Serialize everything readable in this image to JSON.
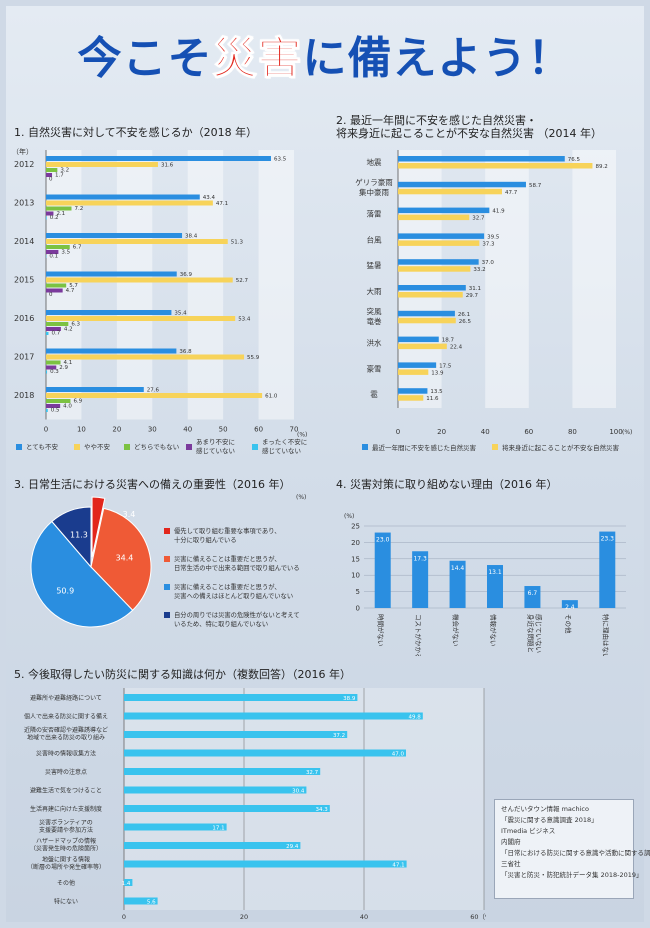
{
  "header": {
    "title_part1": "今こそ",
    "title_part2": "災害",
    "title_part3": "に備えよう！"
  },
  "colors": {
    "blue": "#2a8ee0",
    "yellow": "#f7d35a",
    "green": "#7cc242",
    "purple": "#7b3a9c",
    "cyan": "#39c3ee",
    "red": "#e2261c",
    "orange_red": "#ef5a36",
    "navy": "#1a3c8e"
  },
  "chart_data": [
    {
      "type": "bar",
      "orientation": "horizontal",
      "title": "1.   自然災害に対して不安を感じるか（2018 年）",
      "ylabel": "（年）",
      "unit": "(%)",
      "categories": [
        "2012",
        "2013",
        "2014",
        "2015",
        "2016",
        "2017",
        "2018"
      ],
      "xlim": [
        0,
        70
      ],
      "xticks": [
        "0",
        "10",
        "20",
        "30",
        "40",
        "50",
        "60",
        "70"
      ],
      "series": [
        {
          "name": "とても不安",
          "values": [
            63.5,
            43.4,
            38.4,
            36.9,
            35.4,
            36.8,
            27.6
          ]
        },
        {
          "name": "やや不安",
          "values": [
            31.6,
            47.1,
            51.3,
            52.7,
            53.4,
            55.9,
            61.0
          ]
        },
        {
          "name": "どちらでもない",
          "values": [
            3.2,
            7.2,
            6.7,
            5.7,
            6.3,
            4.1,
            6.9
          ]
        },
        {
          "name": "あまり不安に感じていない",
          "values": [
            1.7,
            2.1,
            3.5,
            4.7,
            4.2,
            2.9,
            4.0
          ]
        },
        {
          "name": "まったく不安に感じていない",
          "values": [
            0,
            0.2,
            0.1,
            0,
            0.7,
            0.3,
            0.5
          ]
        }
      ],
      "labels": [
        [
          "63.5",
          "31.6",
          "3.2",
          "1.7",
          "0"
        ],
        [
          "43.4",
          "47.1",
          "7.2",
          "2.1",
          "0.2"
        ],
        [
          "38.4",
          "51.3",
          "6.7",
          "3.5",
          "0.1"
        ],
        [
          "36.9",
          "52.7",
          "5.7",
          "4.7",
          "0"
        ],
        [
          "35.4",
          "53.4",
          "6.3",
          "4.2",
          "0.7"
        ],
        [
          "36.8",
          "55.9",
          "4.1",
          "2.9",
          "0.3"
        ],
        [
          "27.6",
          "61.0",
          "6.9",
          "4.0",
          "0.5"
        ]
      ],
      "legend": [
        {
          "label": "とても不安",
          "color": "#2a8ee0"
        },
        {
          "label": "やや不安",
          "color": "#f7d35a"
        },
        {
          "label": "どちらでもない",
          "color": "#7cc242"
        },
        {
          "label": "あまり不安に|感じていない",
          "color": "#7b3a9c"
        },
        {
          "label": "まったく不安に|感じていない",
          "color": "#39c3ee"
        }
      ]
    },
    {
      "type": "bar",
      "orientation": "horizontal",
      "title": "2.   最近一年間に不安を感じた自然災害・|将来身近に起こることが不安な自然災害  （2014 年）",
      "unit": "(%)",
      "categories": [
        "地震",
        "ゲリラ豪雨|集中豪雨",
        "落雷",
        "台風",
        "猛暑",
        "大雨",
        "突風|竜巻",
        "洪水",
        "豪雪",
        "雹"
      ],
      "xlim": [
        0,
        100
      ],
      "xticks": [
        "0",
        "20",
        "40",
        "60",
        "80",
        "100"
      ],
      "series": [
        {
          "name": "最近一年間に不安を感じた自然災害",
          "values": [
            76.5,
            58.7,
            41.9,
            39.5,
            37.0,
            31.1,
            26.1,
            18.7,
            17.5,
            13.5
          ]
        },
        {
          "name": "将来身近に起こることが不安な自然災害",
          "values": [
            89.2,
            47.7,
            32.7,
            37.3,
            33.2,
            29.7,
            26.5,
            22.4,
            13.9,
            11.6
          ]
        }
      ],
      "labels": [
        [
          "76.5",
          "89.2"
        ],
        [
          "58.7",
          "47.7"
        ],
        [
          "41.9",
          "32.7"
        ],
        [
          "39.5",
          "37.3"
        ],
        [
          "37.0",
          "33.2"
        ],
        [
          "31.1",
          "29.7"
        ],
        [
          "26.1",
          "26.5"
        ],
        [
          "18.7",
          "22.4"
        ],
        [
          "17.5",
          "13.9"
        ],
        [
          "13.5",
          "11.6"
        ]
      ],
      "legend": [
        {
          "label": "最近一年間に不安を感じた自然災害",
          "color": "#2a8ee0"
        },
        {
          "label": "将来身近に起こることが不安な自然災害",
          "color": "#f7d35a"
        }
      ]
    },
    {
      "type": "pie",
      "title": "3.   日常生活における災害への備えの重要性（2016 年）",
      "unit": "(%)",
      "values": [
        3.4,
        34.4,
        50.9,
        11.3
      ],
      "labels": [
        "3.4",
        "34.4",
        "50.9",
        "11.3"
      ],
      "legend": [
        {
          "label": "優先して取り組む重要な事項であり、|十分に取り組んでいる",
          "color": "#e2261c"
        },
        {
          "label": "災害に備えることは重要だと思うが、|日常生活の中で出来る範囲で取り組んでいる",
          "color": "#ef5a36"
        },
        {
          "label": "災害に備えることは重要だと思うが、|災害への備えはほとんど取り組んでいない",
          "color": "#2a8ee0"
        },
        {
          "label": "自分の周りでは災害の危険性がないと考えて|いるため、特に取り組んでいない",
          "color": "#1a3c8e"
        }
      ]
    },
    {
      "type": "bar",
      "orientation": "vertical",
      "title": "4.   災害対策に取り組めない理由（2016 年）",
      "unit": "(%)",
      "ylim": [
        0,
        25
      ],
      "yticks": [
        "0",
        "5",
        "10",
        "15",
        "20",
        "25"
      ],
      "categories": [
        "時間がない",
        "コストがかかる",
        "機会がない",
        "情報がない",
        "身近な問題と|感じていない",
        "その他",
        "特に理由はない"
      ],
      "values": [
        23.0,
        17.3,
        14.4,
        13.1,
        6.7,
        2.4,
        23.3
      ],
      "labels": [
        "23.0",
        "17.3",
        "14.4",
        "13.1",
        "6.7",
        "2.4",
        "23.3"
      ]
    },
    {
      "type": "bar",
      "orientation": "horizontal",
      "title": "5.   今後取得したい防災に関する知識は何か（複数回答）（2016 年）",
      "xlim": [
        0,
        60
      ],
      "xticks": [
        "0",
        "20",
        "40",
        "60（%）"
      ],
      "categories": [
        "避難所や避難経路について",
        "個人で出来る防災に関する備え",
        "近隣の安否確認や避難誘導など|地域で出来る防災の取り組み",
        "災害時の情報収集方法",
        "災害時の注意点",
        "避難生活で気をつけること",
        "生活再建に向けた支援制度",
        "災害ボランティアの|支援要請や参加方法",
        "ハザードマップの情報|（災害発生時の危険箇所）",
        "地盤に関する情報|（断層の場所や発生確率等）",
        "その他",
        "特にない"
      ],
      "values": [
        38.9,
        49.8,
        37.2,
        47.0,
        32.7,
        30.4,
        34.3,
        17.1,
        29.4,
        47.1,
        1.4,
        5.6
      ],
      "labels": [
        "38.9",
        "49.8",
        "37.2",
        "47.0",
        "32.7",
        "30.4",
        "34.3",
        "17.1",
        "29.4",
        "47.1",
        "1.4",
        "5.6"
      ]
    }
  ],
  "sources": [
    "せんだいタウン情報 machico",
    "「震災に関する意識調査 2018」",
    "ITmedia ビジネス",
    "内閣府",
    "「日常における防災に関する意識や活動に関する調査」",
    "三省社",
    "「災害と防災・防犯統計データ集 2018-2019」"
  ]
}
